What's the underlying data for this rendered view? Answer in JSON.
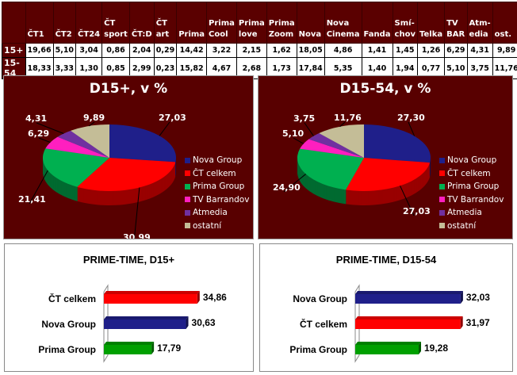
{
  "table": {
    "headers": [
      "",
      "ČT1",
      "ČT2",
      "ČT24",
      "ČT sport",
      "ČT:D",
      "ČT art",
      "Prima",
      "Prima Cool",
      "Prima love",
      "Prima Zoom",
      "Nova",
      "Nova Cinema",
      "Fanda",
      "Smí-chov",
      "Telka",
      "TV BAR",
      "Atm-edia",
      "ost."
    ],
    "rows": [
      {
        "label": "15+",
        "values": [
          "19,66",
          "5,10",
          "3,04",
          "0,86",
          "2,04",
          "0,29",
          "14,42",
          "3,22",
          "2,15",
          "1,62",
          "18,05",
          "4,86",
          "1,41",
          "1,45",
          "1,26",
          "6,29",
          "4,31",
          "9,89"
        ]
      },
      {
        "label": "15-54",
        "values": [
          "18,33",
          "3,33",
          "1,30",
          "0,85",
          "2,99",
          "0,23",
          "15,82",
          "4,67",
          "2,68",
          "1,73",
          "17,84",
          "5,35",
          "1,40",
          "1,94",
          "0,77",
          "5,10",
          "3,75",
          "11,76"
        ]
      }
    ]
  },
  "legend": [
    "Nova Group",
    "ČT celkem",
    "Prima Group",
    "TV Barrandov",
    "Atmedia",
    "ostatní"
  ],
  "colors": {
    "Nova Group": "#1f1f8a",
    "ČT celkem": "#ff0000",
    "Prima Group": "#00b050",
    "TV Barrandov": "#ff1fbf",
    "Atmedia": "#7030a0",
    "ostatní": "#c4bd97",
    "panel": "#580000"
  },
  "chart_data": [
    {
      "type": "pie",
      "title": "D15+, v %",
      "categories": [
        "Nova Group",
        "ČT celkem",
        "Prima Group",
        "TV Barrandov",
        "Atmedia",
        "ostatní"
      ],
      "values": [
        27.03,
        30.99,
        21.41,
        6.29,
        4.31,
        9.89
      ],
      "labels": [
        "27,03",
        "30,99",
        "21,41",
        "6,29",
        "4,31",
        "9,89"
      ],
      "legend": "right"
    },
    {
      "type": "pie",
      "title": "D15-54, v %",
      "categories": [
        "Nova Group",
        "ČT celkem",
        "Prima Group",
        "TV Barrandov",
        "Atmedia",
        "ostatní"
      ],
      "values": [
        27.3,
        27.03,
        24.9,
        5.1,
        3.75,
        11.76
      ],
      "labels": [
        "27,30",
        "27,03",
        "24,90",
        "5,10",
        "3,75",
        "11,76"
      ],
      "legend": "right"
    },
    {
      "type": "bar",
      "orientation": "horizontal",
      "title": "PRIME-TIME, D15+",
      "categories": [
        "ČT celkem",
        "Nova Group",
        "Prima Group"
      ],
      "values": [
        34.86,
        30.63,
        17.79
      ],
      "labels": [
        "34,86",
        "30,63",
        "17,79"
      ],
      "colors": [
        "#ff0000",
        "#1f1f8a",
        "#00a000"
      ]
    },
    {
      "type": "bar",
      "orientation": "horizontal",
      "title": "PRIME-TIME, D15-54",
      "categories": [
        "Nova Group",
        "ČT celkem",
        "Prima Group"
      ],
      "values": [
        32.03,
        31.97,
        19.28
      ],
      "labels": [
        "32,03",
        "31,97",
        "19,28"
      ],
      "colors": [
        "#1f1f8a",
        "#ff0000",
        "#00a000"
      ]
    }
  ]
}
